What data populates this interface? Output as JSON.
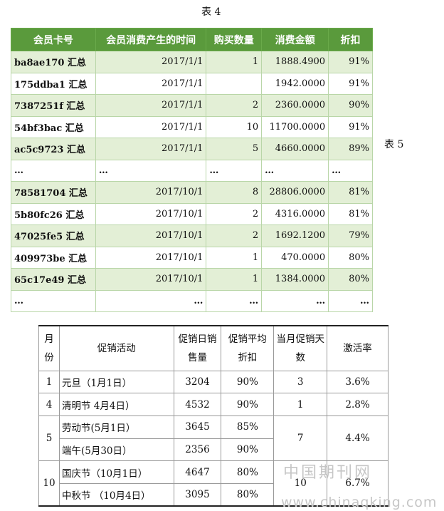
{
  "table4": {
    "caption": "表 4",
    "headers": [
      "会员卡号",
      "会员消费产生的时间",
      "购买数量",
      "消费金额",
      "折扣"
    ],
    "rows": [
      {
        "id": "ba8ae170 汇总",
        "date": "2017/1/1",
        "qty": "1",
        "amount": "1888.4900",
        "discount": "91%"
      },
      {
        "id": "175ddba1 汇总",
        "date": "2017/1/1",
        "qty": "",
        "amount": "1942.0000",
        "discount": "91%"
      },
      {
        "id": "7387251f 汇总",
        "date": "2017/1/1",
        "qty": "2",
        "amount": "2360.0000",
        "discount": "90%"
      },
      {
        "id": "54bf3bac 汇总",
        "date": "2017/1/1",
        "qty": "10",
        "amount": "11700.0000",
        "discount": "91%"
      },
      {
        "id": "ac5c9723 汇总",
        "date": "2017/1/1",
        "qty": "5",
        "amount": "4660.0000",
        "discount": "89%"
      },
      {
        "id": "…",
        "date": "…",
        "qty": "…",
        "amount": "…",
        "discount": "…"
      },
      {
        "id": "78581704 汇总",
        "date": "2017/10/1",
        "qty": "8",
        "amount": "28806.0000",
        "discount": "81%"
      },
      {
        "id": "5b80fc26 汇总",
        "date": "2017/10/1",
        "qty": "2",
        "amount": "4316.0000",
        "discount": "81%"
      },
      {
        "id": "47025fe5 汇总",
        "date": "2017/10/1",
        "qty": "2",
        "amount": "1692.1200",
        "discount": "79%"
      },
      {
        "id": "409973be 汇总",
        "date": "2017/10/1",
        "qty": "1",
        "amount": "470.0000",
        "discount": "80%"
      },
      {
        "id": "65c17e49 汇总",
        "date": "2017/10/1",
        "qty": "1",
        "amount": "1384.0000",
        "discount": "80%"
      },
      {
        "id": "…",
        "date": "…",
        "qty": "…",
        "amount": "…",
        "discount": "…"
      }
    ]
  },
  "table5": {
    "caption": "表 5",
    "headers": {
      "month": "月份",
      "activity": "促销活动",
      "daily_sales": "促销日销售量",
      "avg_discount": "促销平均折扣",
      "promo_days": "当月促销天数",
      "activation": "激活率"
    },
    "rows": [
      {
        "month": "1",
        "activity": "元旦（1月1日）",
        "sales": "3204",
        "discount": "90%",
        "days": "3",
        "rate": "3.6%"
      },
      {
        "month": "4",
        "activity": "清明节 4月4日）",
        "sales": "4532",
        "discount": "90%",
        "days": "1",
        "rate": "2.8%"
      },
      {
        "month": "5",
        "activity": "劳动节(5月1日）",
        "sales": "3645",
        "discount": "85%",
        "days": "7",
        "rate": "4.4%"
      },
      {
        "month": "",
        "activity": "端午(5月30日）",
        "sales": "2356",
        "discount": "90%",
        "days": "",
        "rate": ""
      },
      {
        "month": "10",
        "activity": "国庆节（10月1日）",
        "sales": "4647",
        "discount": "80%",
        "days": "10",
        "rate": "6.7%"
      },
      {
        "month": "",
        "activity": "中秋节 （10月4日）",
        "sales": "3095",
        "discount": "80%",
        "days": "",
        "rate": ""
      }
    ]
  },
  "watermark": {
    "text_cn": "中国期刊网",
    "url": "www.chinaqking.com"
  }
}
